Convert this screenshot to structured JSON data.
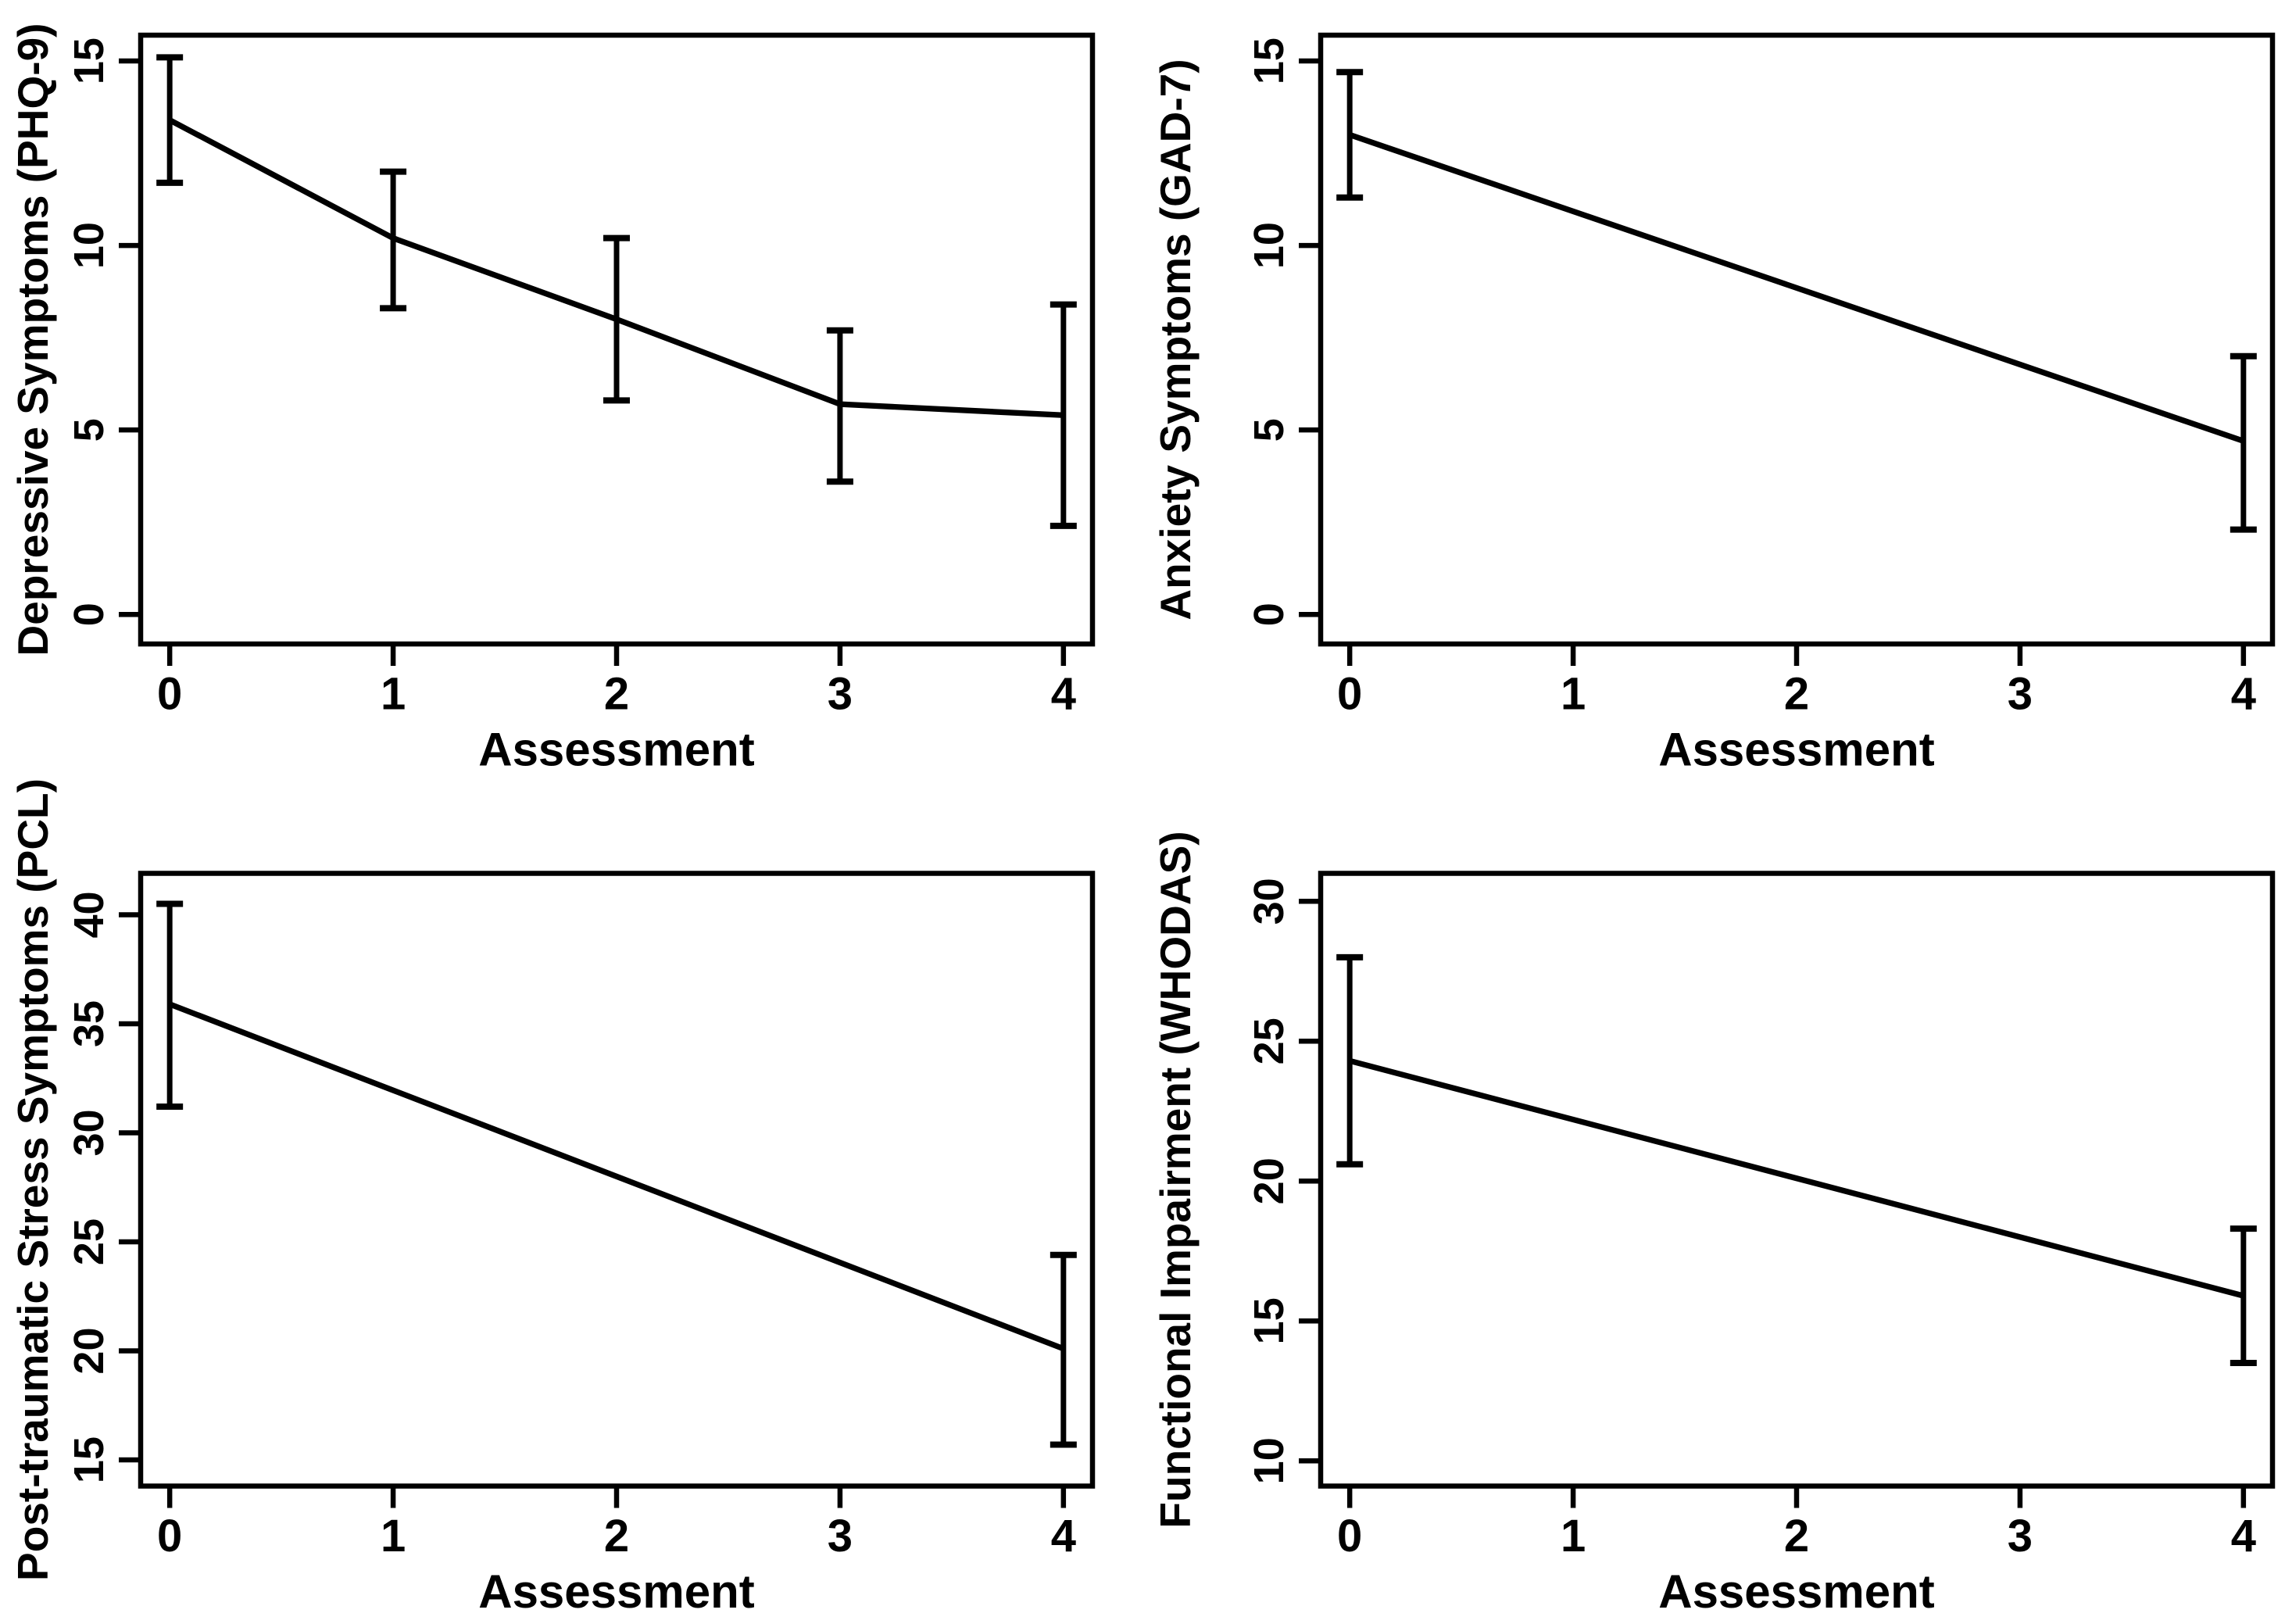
{
  "figure": {
    "layout": "2x2-grid",
    "background": "#ffffff",
    "ink": "#000000",
    "panel_names": [
      "phq9",
      "gad7",
      "pcl",
      "whodas"
    ]
  },
  "chart_data": [
    {
      "type": "line",
      "panel": "top-left",
      "title": "",
      "xlabel": "Assessment",
      "ylabel": "Depressive Symptoms (PHQ-9)",
      "x": [
        0,
        1,
        2,
        3,
        4
      ],
      "series": [
        {
          "name": "Mean PHQ-9",
          "values": [
            13.4,
            10.2,
            8.0,
            5.7,
            5.4
          ]
        }
      ],
      "error_bars": {
        "low": [
          11.7,
          8.3,
          5.8,
          3.6,
          2.4
        ],
        "high": [
          15.1,
          12.0,
          10.2,
          7.7,
          8.4
        ]
      },
      "xticks": [
        0,
        1,
        2,
        3,
        4
      ],
      "yticks": [
        0,
        5,
        10,
        15
      ],
      "xlim": [
        -0.13,
        4.13
      ],
      "ylim": [
        -0.8,
        15.7
      ],
      "grid": false,
      "legend": "none",
      "marker": "none"
    },
    {
      "type": "line",
      "panel": "top-right",
      "title": "",
      "xlabel": "Assessment",
      "ylabel": "Anxiety Symptoms (GAD-7)",
      "x": [
        0,
        4
      ],
      "series": [
        {
          "name": "Mean GAD-7",
          "values": [
            13.0,
            4.7
          ]
        }
      ],
      "error_bars": {
        "low": [
          11.3,
          2.3
        ],
        "high": [
          14.7,
          7.0
        ]
      },
      "xticks": [
        0,
        1,
        2,
        3,
        4
      ],
      "yticks": [
        0,
        5,
        10,
        15
      ],
      "xlim": [
        -0.13,
        4.13
      ],
      "ylim": [
        -0.8,
        15.7
      ],
      "grid": false,
      "legend": "none",
      "marker": "none"
    },
    {
      "type": "line",
      "panel": "bottom-left",
      "title": "",
      "xlabel": "Assessment",
      "ylabel": "Post-traumatic Stress Symptoms (PCL)",
      "x": [
        0,
        4
      ],
      "series": [
        {
          "name": "Mean PCL",
          "values": [
            35.9,
            20.1
          ]
        }
      ],
      "error_bars": {
        "low": [
          31.2,
          15.7
        ],
        "high": [
          40.5,
          24.4
        ]
      },
      "xticks": [
        0,
        1,
        2,
        3,
        4
      ],
      "yticks": [
        15,
        20,
        25,
        30,
        35,
        40
      ],
      "xlim": [
        -0.13,
        4.13
      ],
      "ylim": [
        13.8,
        41.9
      ],
      "grid": false,
      "legend": "none",
      "marker": "none"
    },
    {
      "type": "line",
      "panel": "bottom-right",
      "title": "",
      "xlabel": "Assessment",
      "ylabel": "Functional Impairment (WHODAS)",
      "x": [
        0,
        4
      ],
      "series": [
        {
          "name": "Mean WHODAS",
          "values": [
            24.3,
            15.9
          ]
        }
      ],
      "error_bars": {
        "low": [
          20.6,
          13.5
        ],
        "high": [
          28.0,
          18.3
        ]
      },
      "xticks": [
        0,
        1,
        2,
        3,
        4
      ],
      "yticks": [
        10,
        15,
        20,
        25,
        30
      ],
      "xlim": [
        -0.13,
        4.13
      ],
      "ylim": [
        9.1,
        31.0
      ],
      "grid": false,
      "legend": "none",
      "marker": "none"
    }
  ]
}
